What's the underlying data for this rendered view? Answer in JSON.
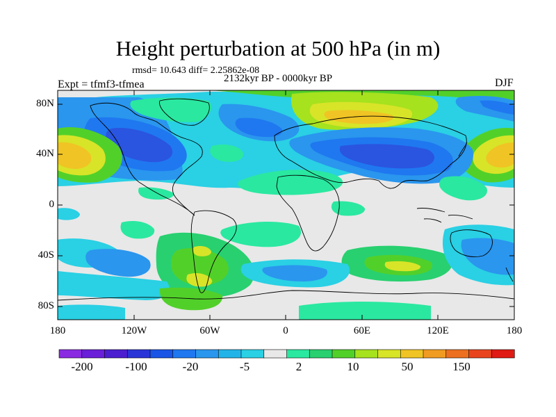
{
  "title": "Height perturbation at 500 hPa (in m)",
  "stats": "rmsd= 10.643  diff= 2.25862e-08",
  "period": "2132kyr BP - 0000kyr BP",
  "experiment": "Expt = tfmf3-tfmea",
  "season": "DJF",
  "latitude_labels": [
    "80N",
    "40N",
    "0",
    "40S",
    "80S"
  ],
  "longitude_labels": [
    "180",
    "120W",
    "60W",
    "0",
    "60E",
    "120E",
    "180"
  ],
  "colorbar": {
    "labels": [
      "-200",
      "-100",
      "-20",
      "-5",
      "2",
      "10",
      "50",
      "150"
    ],
    "colors": [
      "#8a2be2",
      "#6a1fd8",
      "#4b1fd0",
      "#2a35d8",
      "#1a55e6",
      "#1f78f0",
      "#2a96ee",
      "#22b4e8",
      "#2ad0e4",
      "#e8e8e8",
      "#2ae8a0",
      "#28d070",
      "#52d02a",
      "#a6e21e",
      "#d8e428",
      "#f0c424",
      "#f09c22",
      "#ec7020",
      "#e8451e",
      "#e01a14"
    ]
  },
  "map_features": {
    "lows": [
      "North Pacific / North America trough",
      "North Atlantic low",
      "Eurasian low",
      "Western Pacific low"
    ],
    "highs": [
      "North Pacific high",
      "Arctic Siberia high",
      "Southern Indian Ocean high",
      "South American high"
    ]
  }
}
